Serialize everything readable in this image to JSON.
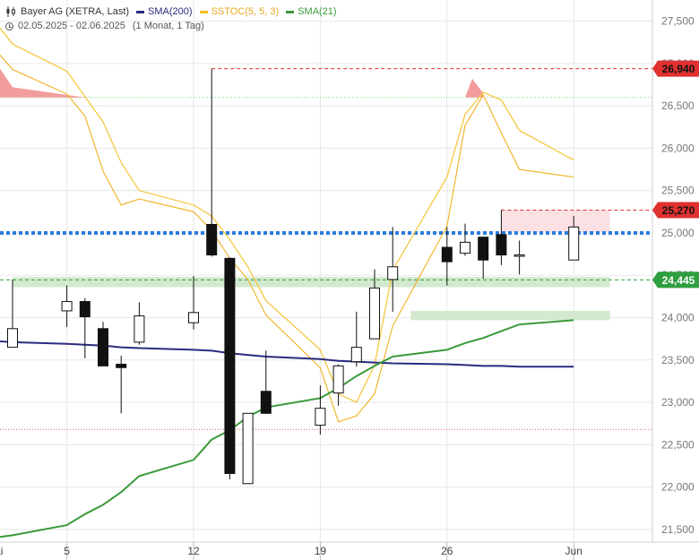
{
  "legend": {
    "instrument": "Bayer AG (XETRA, Last)",
    "indicators": [
      {
        "label": "SMA(200)",
        "color": "#2a2a80"
      },
      {
        "label": "SSTOC(5, 5, 3)",
        "color": "#f2c01e"
      },
      {
        "label": "SMA(21)",
        "color": "#3a9a3a"
      }
    ],
    "date_range": "02.05.2025 - 02.06.2025",
    "period": "(1 Monat, 1 Tag)"
  },
  "chart_data": {
    "type": "candlestick",
    "ylim": [
      21350,
      27750
    ],
    "y_ticks": [
      21500,
      22000,
      22500,
      23000,
      23500,
      24000,
      24500,
      25000,
      25500,
      26000,
      26500,
      27000,
      27500
    ],
    "y_tick_labels": [
      "21,500",
      "22,000",
      "22,500",
      "23,000",
      "23,500",
      "24,000",
      "24,500",
      "25,000",
      "25,500",
      "26,000",
      "26,500",
      "27,000",
      "27,500"
    ],
    "x_labels": [
      {
        "label": "Mai",
        "date": "2025-05-01"
      },
      {
        "label": "5",
        "date": "2025-05-05"
      },
      {
        "label": "12",
        "date": "2025-05-12"
      },
      {
        "label": "19",
        "date": "2025-05-19"
      },
      {
        "label": "26",
        "date": "2025-05-26"
      },
      {
        "label": "Jun",
        "date": "2025-06-02"
      }
    ],
    "candles": [
      {
        "date": "2025-05-02",
        "open": 23650,
        "high": 24450,
        "low": 23650,
        "close": 23870
      },
      {
        "date": "2025-05-05",
        "open": 24080,
        "high": 24380,
        "low": 23890,
        "close": 24190
      },
      {
        "date": "2025-05-06",
        "open": 24190,
        "high": 24230,
        "low": 23520,
        "close": 24010
      },
      {
        "date": "2025-05-07",
        "open": 23870,
        "high": 23950,
        "low": 23430,
        "close": 23430
      },
      {
        "date": "2025-05-08",
        "open": 23450,
        "high": 23550,
        "low": 22870,
        "close": 23410
      },
      {
        "date": "2025-05-09",
        "open": 23710,
        "high": 24180,
        "low": 23680,
        "close": 24020
      },
      {
        "date": "2025-05-12",
        "open": 23940,
        "high": 24490,
        "low": 23860,
        "close": 24060
      },
      {
        "date": "2025-05-13",
        "open": 25100,
        "high": 26940,
        "low": 24720,
        "close": 24740
      },
      {
        "date": "2025-05-14",
        "open": 24700,
        "high": 24710,
        "low": 22090,
        "close": 22160
      },
      {
        "date": "2025-05-15",
        "open": 22040,
        "high": 22870,
        "low": 22040,
        "close": 22870
      },
      {
        "date": "2025-05-16",
        "open": 23130,
        "high": 23610,
        "low": 22870,
        "close": 22870
      },
      {
        "date": "2025-05-19",
        "open": 22730,
        "high": 23200,
        "low": 22620,
        "close": 22930
      },
      {
        "date": "2025-05-20",
        "open": 23110,
        "high": 23450,
        "low": 22960,
        "close": 23430
      },
      {
        "date": "2025-05-21",
        "open": 23480,
        "high": 24070,
        "low": 23420,
        "close": 23650
      },
      {
        "date": "2025-05-22",
        "open": 23750,
        "high": 24570,
        "low": 23750,
        "close": 24350
      },
      {
        "date": "2025-05-23",
        "open": 24450,
        "high": 25070,
        "low": 24070,
        "close": 24600
      },
      {
        "date": "2025-05-26",
        "open": 24830,
        "high": 25070,
        "low": 24380,
        "close": 24660
      },
      {
        "date": "2025-05-27",
        "open": 24760,
        "high": 25110,
        "low": 24730,
        "close": 24890
      },
      {
        "date": "2025-05-28",
        "open": 24950,
        "high": 24950,
        "low": 24460,
        "close": 24680
      },
      {
        "date": "2025-05-29",
        "open": 24980,
        "high": 25270,
        "low": 24620,
        "close": 24740
      },
      {
        "date": "2025-05-30",
        "open": 24740,
        "high": 24910,
        "low": 24510,
        "close": 24740
      },
      {
        "date": "2025-06-02",
        "open": 24680,
        "high": 25200,
        "low": 24680,
        "close": 25070
      }
    ],
    "series": [
      {
        "name": "SMA(200)",
        "values": [
          23710,
          23690,
          23680,
          23670,
          23650,
          23640,
          23620,
          23610,
          23580,
          23560,
          23540,
          23510,
          23490,
          23480,
          23470,
          23460,
          23450,
          23440,
          23430,
          23430,
          23420,
          23420
        ]
      },
      {
        "name": "SMA(21)",
        "values": [
          21430,
          21550,
          21680,
          21790,
          21940,
          22130,
          22320,
          22560,
          22670,
          22830,
          22940,
          23050,
          23170,
          23310,
          23430,
          23540,
          23620,
          23700,
          23760,
          23840,
          23920,
          23970
        ]
      }
    ],
    "sstoc_overlay": {
      "k": [
        26930,
        26640,
        26380,
        25730,
        25330,
        25400,
        25250,
        25030,
        24700,
        24450,
        24030,
        23410,
        22770,
        22840,
        23100,
        23900,
        25080,
        26270,
        26630,
        26180,
        25750,
        25660
      ],
      "d": [
        27230,
        26910,
        26610,
        26310,
        25830,
        25500,
        25330,
        25200,
        24920,
        24600,
        24200,
        23620,
        23100,
        23000,
        23440,
        24560,
        25660,
        26400,
        26660,
        26570,
        26210,
        25860
      ]
    },
    "levels": [
      {
        "value": 26940,
        "label": "26,940",
        "color": "#e03030",
        "style": "dashed"
      },
      {
        "value": 25270,
        "label": "25,270",
        "color": "#e03030",
        "style": "dashed"
      },
      {
        "value": 25000,
        "label": "",
        "color": "#2b7de0",
        "style": "dotted-thick"
      },
      {
        "value": 24445,
        "label": "24,445",
        "color": "#2e9e3e",
        "style": "dashed"
      },
      {
        "value": 26600,
        "label": "",
        "color": "#7fd07f",
        "style": "dotted"
      },
      {
        "value": 22680,
        "label": "",
        "color": "#e06060",
        "style": "dotted"
      }
    ],
    "zones": [
      {
        "from_date": "2025-05-29",
        "to_date": "2025-06-04",
        "low": 25010,
        "high": 25270,
        "color": "#fbe1e4"
      },
      {
        "from_date": "2025-05-02",
        "to_date": "2025-06-04",
        "low": 24360,
        "high": 24480,
        "color": "#d3e9cf"
      },
      {
        "from_date": "2025-05-24",
        "to_date": "2025-06-04",
        "low": 23970,
        "high": 24080,
        "color": "#d3e9cf"
      }
    ],
    "grid": true,
    "legend_position": "top-left"
  }
}
